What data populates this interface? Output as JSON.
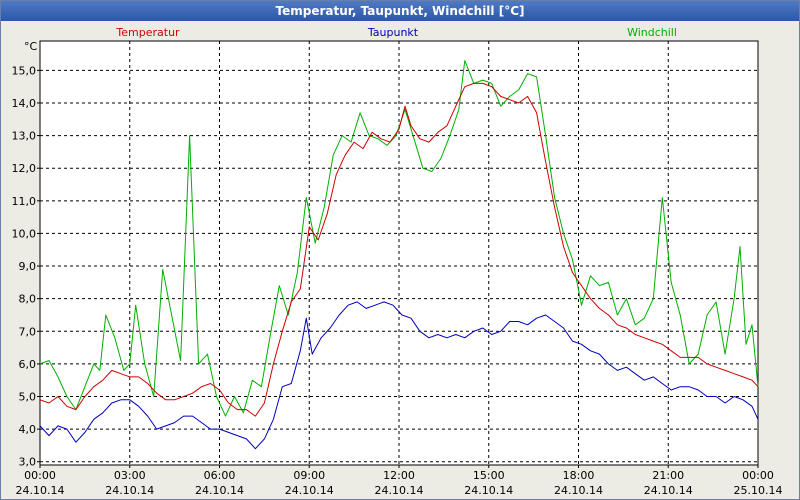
{
  "window": {
    "title": "Temperatur, Taupunkt, Windchill [°C]"
  },
  "colors": {
    "temperatur": "#d00000",
    "taupunkt": "#0000c0",
    "windchill": "#00b000",
    "grid": "#000000"
  },
  "chart_data": {
    "type": "line",
    "title": "Temperatur, Taupunkt, Windchill [°C]",
    "ylabel": "°C",
    "xlabel": "",
    "ylim": [
      2.9,
      15.9
    ],
    "xlim": [
      0,
      24
    ],
    "grid": true,
    "legend": [
      "Temperatur",
      "Taupunkt",
      "Windchill"
    ],
    "y_ticks": [
      {
        "v": 3,
        "label": "3,0"
      },
      {
        "v": 4,
        "label": "4,0"
      },
      {
        "v": 5,
        "label": "5,0"
      },
      {
        "v": 6,
        "label": "6,0"
      },
      {
        "v": 7,
        "label": "7,0"
      },
      {
        "v": 8,
        "label": "8,0"
      },
      {
        "v": 9,
        "label": "9,0"
      },
      {
        "v": 10,
        "label": "10,0"
      },
      {
        "v": 11,
        "label": "11,0"
      },
      {
        "v": 12,
        "label": "12,0"
      },
      {
        "v": 13,
        "label": "13,0"
      },
      {
        "v": 14,
        "label": "14,0"
      },
      {
        "v": 15,
        "label": "15,0"
      }
    ],
    "x_ticks": [
      {
        "h": 0,
        "time": "00:00",
        "date": "24.10.14"
      },
      {
        "h": 3,
        "time": "03:00",
        "date": "24.10.14"
      },
      {
        "h": 6,
        "time": "06:00",
        "date": "24.10.14"
      },
      {
        "h": 9,
        "time": "09:00",
        "date": "24.10.14"
      },
      {
        "h": 12,
        "time": "12:00",
        "date": "24.10.14"
      },
      {
        "h": 15,
        "time": "15:00",
        "date": "24.10.14"
      },
      {
        "h": 18,
        "time": "18:00",
        "date": "24.10.14"
      },
      {
        "h": 21,
        "time": "21:00",
        "date": "24.10.14"
      },
      {
        "h": 24,
        "time": "00:00",
        "date": "25.10.14"
      }
    ],
    "series": [
      {
        "name": "Temperatur",
        "color": "#d00000",
        "points": [
          [
            0.0,
            4.9
          ],
          [
            0.3,
            4.8
          ],
          [
            0.6,
            5.0
          ],
          [
            0.9,
            4.7
          ],
          [
            1.2,
            4.6
          ],
          [
            1.5,
            5.0
          ],
          [
            1.8,
            5.3
          ],
          [
            2.1,
            5.5
          ],
          [
            2.4,
            5.8
          ],
          [
            2.7,
            5.7
          ],
          [
            3.0,
            5.6
          ],
          [
            3.3,
            5.6
          ],
          [
            3.6,
            5.4
          ],
          [
            3.9,
            5.1
          ],
          [
            4.2,
            4.9
          ],
          [
            4.5,
            4.9
          ],
          [
            4.8,
            5.0
          ],
          [
            5.1,
            5.1
          ],
          [
            5.4,
            5.3
          ],
          [
            5.7,
            5.4
          ],
          [
            6.0,
            5.2
          ],
          [
            6.3,
            4.8
          ],
          [
            6.6,
            4.6
          ],
          [
            6.9,
            4.6
          ],
          [
            7.2,
            4.4
          ],
          [
            7.5,
            4.8
          ],
          [
            7.8,
            6.0
          ],
          [
            8.1,
            7.0
          ],
          [
            8.4,
            7.9
          ],
          [
            8.7,
            8.3
          ],
          [
            9.0,
            10.2
          ],
          [
            9.3,
            9.8
          ],
          [
            9.6,
            10.6
          ],
          [
            9.9,
            11.8
          ],
          [
            10.2,
            12.4
          ],
          [
            10.5,
            12.8
          ],
          [
            10.8,
            12.6
          ],
          [
            11.1,
            13.1
          ],
          [
            11.4,
            12.9
          ],
          [
            11.7,
            12.8
          ],
          [
            12.0,
            13.2
          ],
          [
            12.2,
            13.9
          ],
          [
            12.4,
            13.3
          ],
          [
            12.7,
            12.9
          ],
          [
            13.0,
            12.8
          ],
          [
            13.3,
            13.1
          ],
          [
            13.6,
            13.3
          ],
          [
            13.9,
            13.9
          ],
          [
            14.2,
            14.5
          ],
          [
            14.5,
            14.6
          ],
          [
            14.8,
            14.6
          ],
          [
            15.1,
            14.5
          ],
          [
            15.4,
            14.2
          ],
          [
            15.7,
            14.1
          ],
          [
            16.0,
            14.0
          ],
          [
            16.3,
            14.2
          ],
          [
            16.6,
            13.7
          ],
          [
            16.9,
            12.2
          ],
          [
            17.2,
            10.8
          ],
          [
            17.5,
            9.6
          ],
          [
            17.8,
            8.8
          ],
          [
            18.1,
            8.4
          ],
          [
            18.4,
            8.0
          ],
          [
            18.7,
            7.7
          ],
          [
            19.0,
            7.5
          ],
          [
            19.3,
            7.2
          ],
          [
            19.6,
            7.1
          ],
          [
            19.9,
            6.9
          ],
          [
            20.2,
            6.8
          ],
          [
            20.5,
            6.7
          ],
          [
            20.8,
            6.6
          ],
          [
            21.1,
            6.4
          ],
          [
            21.4,
            6.2
          ],
          [
            21.7,
            6.2
          ],
          [
            22.0,
            6.2
          ],
          [
            22.3,
            6.0
          ],
          [
            22.6,
            5.9
          ],
          [
            22.9,
            5.8
          ],
          [
            23.2,
            5.7
          ],
          [
            23.5,
            5.6
          ],
          [
            23.8,
            5.5
          ],
          [
            24.0,
            5.3
          ]
        ]
      },
      {
        "name": "Taupunkt",
        "color": "#0000c0",
        "points": [
          [
            0.0,
            4.1
          ],
          [
            0.3,
            3.8
          ],
          [
            0.6,
            4.1
          ],
          [
            0.9,
            4.0
          ],
          [
            1.2,
            3.6
          ],
          [
            1.5,
            3.9
          ],
          [
            1.8,
            4.3
          ],
          [
            2.1,
            4.5
          ],
          [
            2.4,
            4.8
          ],
          [
            2.7,
            4.9
          ],
          [
            3.0,
            4.9
          ],
          [
            3.3,
            4.7
          ],
          [
            3.6,
            4.4
          ],
          [
            3.9,
            4.0
          ],
          [
            4.2,
            4.1
          ],
          [
            4.5,
            4.2
          ],
          [
            4.8,
            4.4
          ],
          [
            5.1,
            4.4
          ],
          [
            5.4,
            4.2
          ],
          [
            5.7,
            4.0
          ],
          [
            6.0,
            4.0
          ],
          [
            6.3,
            3.9
          ],
          [
            6.6,
            3.8
          ],
          [
            6.9,
            3.7
          ],
          [
            7.2,
            3.4
          ],
          [
            7.5,
            3.7
          ],
          [
            7.8,
            4.3
          ],
          [
            8.1,
            5.3
          ],
          [
            8.4,
            5.4
          ],
          [
            8.7,
            6.4
          ],
          [
            8.9,
            7.4
          ],
          [
            9.1,
            6.3
          ],
          [
            9.4,
            6.8
          ],
          [
            9.7,
            7.1
          ],
          [
            10.0,
            7.5
          ],
          [
            10.3,
            7.8
          ],
          [
            10.6,
            7.9
          ],
          [
            10.9,
            7.7
          ],
          [
            11.2,
            7.8
          ],
          [
            11.5,
            7.9
          ],
          [
            11.8,
            7.8
          ],
          [
            12.1,
            7.5
          ],
          [
            12.4,
            7.4
          ],
          [
            12.7,
            7.0
          ],
          [
            13.0,
            6.8
          ],
          [
            13.3,
            6.9
          ],
          [
            13.6,
            6.8
          ],
          [
            13.9,
            6.9
          ],
          [
            14.2,
            6.8
          ],
          [
            14.5,
            7.0
          ],
          [
            14.8,
            7.1
          ],
          [
            15.1,
            6.9
          ],
          [
            15.4,
            7.0
          ],
          [
            15.7,
            7.3
          ],
          [
            16.0,
            7.3
          ],
          [
            16.3,
            7.2
          ],
          [
            16.6,
            7.4
          ],
          [
            16.9,
            7.5
          ],
          [
            17.2,
            7.3
          ],
          [
            17.5,
            7.1
          ],
          [
            17.8,
            6.7
          ],
          [
            18.1,
            6.6
          ],
          [
            18.4,
            6.4
          ],
          [
            18.7,
            6.3
          ],
          [
            19.0,
            6.0
          ],
          [
            19.3,
            5.8
          ],
          [
            19.6,
            5.9
          ],
          [
            19.9,
            5.7
          ],
          [
            20.2,
            5.5
          ],
          [
            20.5,
            5.6
          ],
          [
            20.8,
            5.4
          ],
          [
            21.1,
            5.2
          ],
          [
            21.4,
            5.3
          ],
          [
            21.7,
            5.3
          ],
          [
            22.0,
            5.2
          ],
          [
            22.3,
            5.0
          ],
          [
            22.6,
            5.0
          ],
          [
            22.9,
            4.8
          ],
          [
            23.2,
            5.0
          ],
          [
            23.5,
            4.9
          ],
          [
            23.8,
            4.7
          ],
          [
            24.0,
            4.3
          ]
        ]
      },
      {
        "name": "Windchill",
        "color": "#00b000",
        "points": [
          [
            0.0,
            6.0
          ],
          [
            0.3,
            6.1
          ],
          [
            0.6,
            5.6
          ],
          [
            0.9,
            5.0
          ],
          [
            1.2,
            4.6
          ],
          [
            1.5,
            5.3
          ],
          [
            1.8,
            6.0
          ],
          [
            2.0,
            5.8
          ],
          [
            2.2,
            7.5
          ],
          [
            2.5,
            6.8
          ],
          [
            2.8,
            5.8
          ],
          [
            3.0,
            6.0
          ],
          [
            3.2,
            7.8
          ],
          [
            3.5,
            6.0
          ],
          [
            3.8,
            5.0
          ],
          [
            4.1,
            8.9
          ],
          [
            4.4,
            7.5
          ],
          [
            4.7,
            6.1
          ],
          [
            5.0,
            13.0
          ],
          [
            5.3,
            6.0
          ],
          [
            5.6,
            6.3
          ],
          [
            5.9,
            5.0
          ],
          [
            6.2,
            4.4
          ],
          [
            6.5,
            5.0
          ],
          [
            6.8,
            4.5
          ],
          [
            7.1,
            5.5
          ],
          [
            7.4,
            5.3
          ],
          [
            7.7,
            6.9
          ],
          [
            8.0,
            8.4
          ],
          [
            8.3,
            7.5
          ],
          [
            8.6,
            8.8
          ],
          [
            8.9,
            11.1
          ],
          [
            9.2,
            9.7
          ],
          [
            9.5,
            10.8
          ],
          [
            9.8,
            12.4
          ],
          [
            10.1,
            13.0
          ],
          [
            10.4,
            12.8
          ],
          [
            10.7,
            13.7
          ],
          [
            11.0,
            13.0
          ],
          [
            11.3,
            12.9
          ],
          [
            11.6,
            12.7
          ],
          [
            11.9,
            13.0
          ],
          [
            12.2,
            13.8
          ],
          [
            12.5,
            12.9
          ],
          [
            12.8,
            12.0
          ],
          [
            13.1,
            11.9
          ],
          [
            13.4,
            12.3
          ],
          [
            13.7,
            13.0
          ],
          [
            14.0,
            13.8
          ],
          [
            14.2,
            15.3
          ],
          [
            14.5,
            14.6
          ],
          [
            14.8,
            14.7
          ],
          [
            15.1,
            14.6
          ],
          [
            15.4,
            13.9
          ],
          [
            15.7,
            14.2
          ],
          [
            16.0,
            14.4
          ],
          [
            16.3,
            14.9
          ],
          [
            16.6,
            14.8
          ],
          [
            16.9,
            13.0
          ],
          [
            17.2,
            11.1
          ],
          [
            17.5,
            10.0
          ],
          [
            17.8,
            9.2
          ],
          [
            18.1,
            7.8
          ],
          [
            18.4,
            8.7
          ],
          [
            18.7,
            8.4
          ],
          [
            19.0,
            8.5
          ],
          [
            19.3,
            7.5
          ],
          [
            19.6,
            8.0
          ],
          [
            19.9,
            7.2
          ],
          [
            20.2,
            7.4
          ],
          [
            20.5,
            8.0
          ],
          [
            20.8,
            11.1
          ],
          [
            21.1,
            8.5
          ],
          [
            21.4,
            7.5
          ],
          [
            21.7,
            6.0
          ],
          [
            22.0,
            6.3
          ],
          [
            22.3,
            7.5
          ],
          [
            22.6,
            7.9
          ],
          [
            22.9,
            6.3
          ],
          [
            23.2,
            8.0
          ],
          [
            23.4,
            9.6
          ],
          [
            23.6,
            6.6
          ],
          [
            23.8,
            7.2
          ],
          [
            24.0,
            5.3
          ]
        ]
      }
    ]
  }
}
